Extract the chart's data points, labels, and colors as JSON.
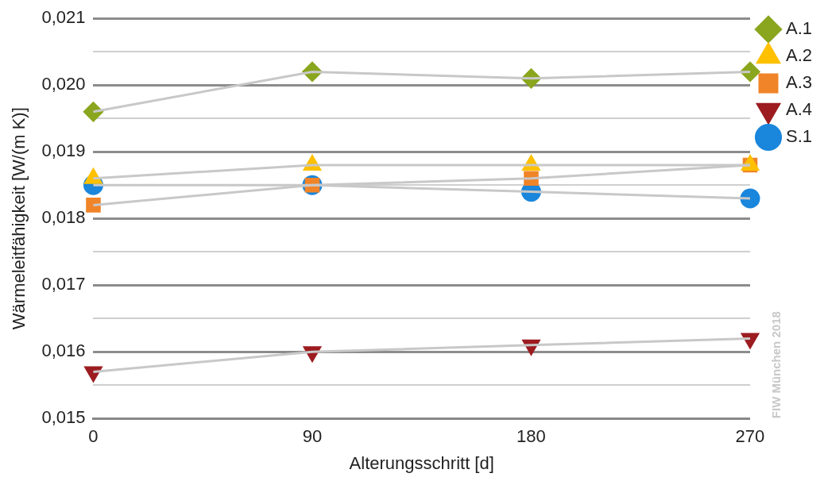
{
  "chart_data": {
    "type": "line",
    "xlabel": "Alterungsschritt [d]",
    "ylabel": "Wärmeleitfähigkeit [W/(m K)]",
    "x": [
      0,
      90,
      180,
      270
    ],
    "xlim": [
      0,
      270
    ],
    "xticks": [
      0,
      90,
      180,
      270
    ],
    "ylim": [
      0.015,
      0.021
    ],
    "yticks": [
      {
        "value": 0.015,
        "label": "0,015"
      },
      {
        "value": 0.0155,
        "label": null
      },
      {
        "value": 0.016,
        "label": "0,016"
      },
      {
        "value": 0.0165,
        "label": null
      },
      {
        "value": 0.017,
        "label": "0,017"
      },
      {
        "value": 0.0175,
        "label": null
      },
      {
        "value": 0.018,
        "label": "0,018"
      },
      {
        "value": 0.0185,
        "label": null
      },
      {
        "value": 0.019,
        "label": "0,019"
      },
      {
        "value": 0.0195,
        "label": null
      },
      {
        "value": 0.02,
        "label": "0,020"
      },
      {
        "value": 0.0205,
        "label": null
      },
      {
        "value": 0.021,
        "label": "0,021"
      }
    ],
    "grid": "y",
    "legend": "right",
    "annotations": [
      "FIW München 2018"
    ],
    "series": [
      {
        "name": "A.1",
        "color": "#8aa61e",
        "marker": "diamond",
        "values": [
          0.0196,
          0.0202,
          0.0201,
          0.0202
        ]
      },
      {
        "name": "A.2",
        "color": "#ffc000",
        "marker": "triangle",
        "values": [
          0.0186,
          0.0188,
          0.0188,
          0.0188
        ]
      },
      {
        "name": "A.3",
        "color": "#f08428",
        "marker": "square",
        "values": [
          0.0182,
          0.0185,
          0.0186,
          0.0188
        ]
      },
      {
        "name": "A.4",
        "color": "#9c1c20",
        "marker": "triangle_down",
        "values": [
          0.0157,
          0.016,
          0.0161,
          0.0162
        ]
      },
      {
        "name": "S.1",
        "color": "#1a86dc",
        "marker": "circle",
        "values": [
          0.0185,
          0.0185,
          0.0184,
          0.0183
        ]
      }
    ]
  }
}
